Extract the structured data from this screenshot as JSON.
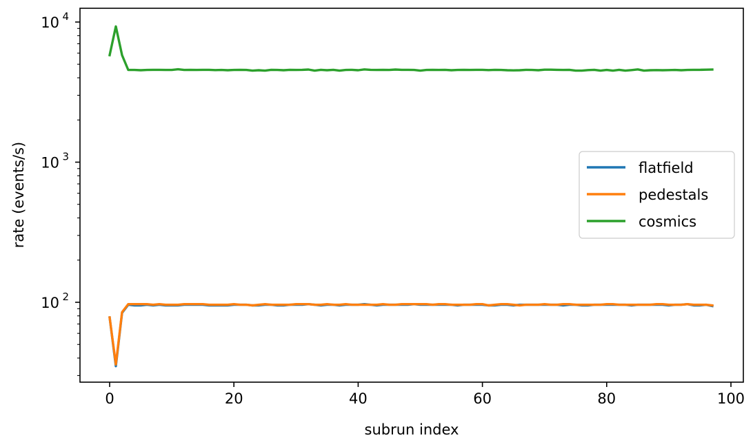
{
  "chart_data": {
    "type": "line",
    "title": "",
    "xlabel": "subrun index",
    "ylabel": "rate (events/s)",
    "xlim": [
      -5,
      102
    ],
    "ylim": [
      27,
      12000
    ],
    "yscale": "log",
    "grid": false,
    "legend_position": "center-right",
    "xticks": [
      0,
      20,
      40,
      60,
      80,
      100
    ],
    "yticks": [
      {
        "base": "10",
        "exp": "2",
        "value": 100
      },
      {
        "base": "10",
        "exp": "3",
        "value": 1000
      },
      {
        "base": "10",
        "exp": "4",
        "value": 10000
      }
    ],
    "x": [
      0,
      1,
      2,
      3,
      4,
      5,
      6,
      7,
      8,
      9,
      10,
      11,
      12,
      13,
      14,
      15,
      16,
      17,
      18,
      19,
      20,
      21,
      22,
      23,
      24,
      25,
      26,
      27,
      28,
      29,
      30,
      31,
      32,
      33,
      34,
      35,
      36,
      37,
      38,
      39,
      40,
      41,
      42,
      43,
      44,
      45,
      46,
      47,
      48,
      49,
      50,
      51,
      52,
      53,
      54,
      55,
      56,
      57,
      58,
      59,
      60,
      61,
      62,
      63,
      64,
      65,
      66,
      67,
      68,
      69,
      70,
      71,
      72,
      73,
      74,
      75,
      76,
      77,
      78,
      79,
      80,
      81,
      82,
      83,
      84,
      85,
      86,
      87,
      88,
      89,
      90,
      91,
      92,
      93,
      94,
      95,
      96,
      97
    ],
    "series": [
      {
        "name": "flatfield",
        "color": "#1f77b4",
        "values": [
          78,
          35,
          84,
          96,
          95,
          95,
          96,
          95,
          96,
          95,
          95,
          95,
          96,
          96,
          96,
          96,
          95,
          95,
          95,
          95,
          96,
          96,
          96,
          95,
          95,
          96,
          96,
          95,
          95,
          96,
          96,
          96,
          97,
          96,
          95,
          96,
          96,
          95,
          96,
          96,
          96,
          97,
          96,
          95,
          96,
          96,
          96,
          96,
          96,
          97,
          96,
          96,
          96,
          96,
          96,
          96,
          95,
          96,
          96,
          96,
          96,
          95,
          95,
          96,
          96,
          95,
          96,
          96,
          96,
          96,
          96,
          96,
          96,
          95,
          96,
          96,
          95,
          95,
          96,
          96,
          96,
          96,
          96,
          96,
          95,
          96,
          96,
          96,
          96,
          96,
          95,
          96,
          96,
          97,
          95,
          95,
          96,
          94
        ]
      },
      {
        "name": "pedestals",
        "color": "#ff7f0e",
        "values": [
          78,
          36,
          85,
          97,
          97,
          97,
          97,
          96,
          97,
          96,
          96,
          96,
          97,
          97,
          97,
          97,
          96,
          96,
          96,
          96,
          97,
          96,
          96,
          95,
          96,
          97,
          96,
          96,
          96,
          96,
          97,
          97,
          97,
          96,
          96,
          97,
          96,
          96,
          97,
          96,
          96,
          96,
          96,
          96,
          97,
          96,
          96,
          97,
          97,
          97,
          97,
          97,
          96,
          97,
          97,
          96,
          96,
          96,
          96,
          97,
          97,
          95,
          96,
          97,
          97,
          96,
          95,
          96,
          96,
          96,
          97,
          96,
          96,
          97,
          97,
          96,
          96,
          96,
          96,
          96,
          97,
          97,
          96,
          96,
          96,
          96,
          96,
          96,
          97,
          97,
          96,
          96,
          96,
          97,
          96,
          96,
          96,
          95
        ]
      },
      {
        "name": "cosmics",
        "color": "#2ca02c",
        "values": [
          5800,
          9300,
          5800,
          4550,
          4550,
          4530,
          4550,
          4560,
          4560,
          4550,
          4550,
          4600,
          4550,
          4560,
          4550,
          4560,
          4560,
          4540,
          4550,
          4530,
          4550,
          4560,
          4550,
          4500,
          4530,
          4500,
          4560,
          4550,
          4530,
          4560,
          4550,
          4560,
          4580,
          4500,
          4560,
          4530,
          4560,
          4500,
          4550,
          4560,
          4530,
          4590,
          4560,
          4550,
          4560,
          4550,
          4580,
          4560,
          4560,
          4550,
          4500,
          4550,
          4560,
          4550,
          4560,
          4530,
          4550,
          4560,
          4550,
          4560,
          4560,
          4540,
          4560,
          4550,
          4530,
          4520,
          4530,
          4560,
          4550,
          4530,
          4570,
          4570,
          4560,
          4550,
          4560,
          4500,
          4500,
          4540,
          4560,
          4500,
          4550,
          4500,
          4560,
          4500,
          4540,
          4590,
          4500,
          4530,
          4540,
          4530,
          4540,
          4550,
          4530,
          4550,
          4560,
          4560,
          4570,
          4580
        ]
      }
    ]
  }
}
